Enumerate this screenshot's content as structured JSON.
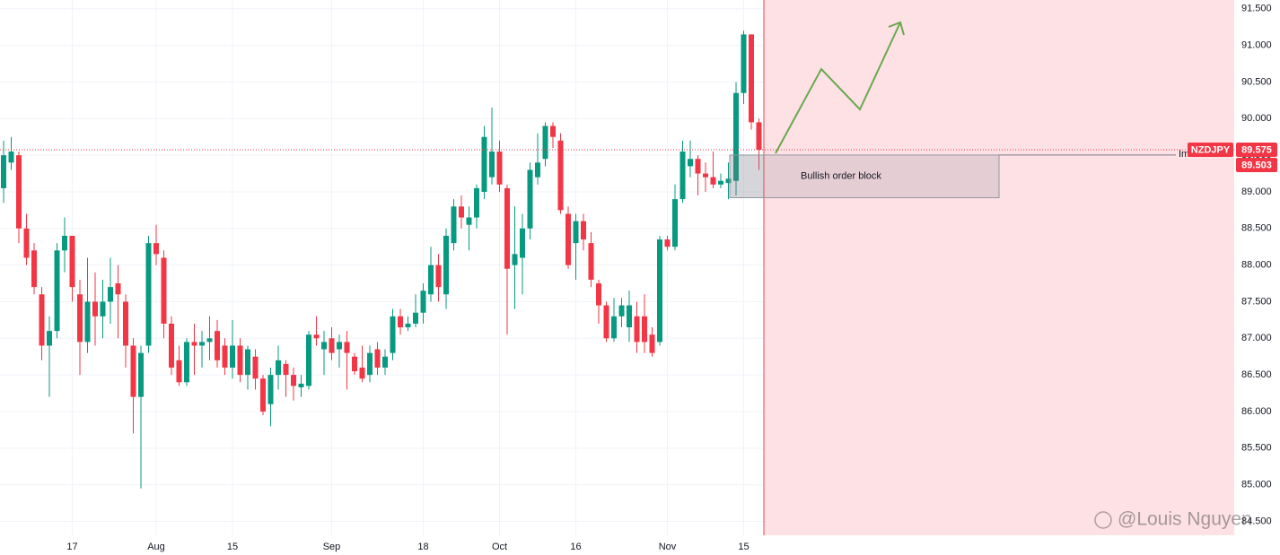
{
  "chart_data": {
    "type": "candlestick",
    "symbol": "NZDJPY",
    "up_color": "#089981",
    "down_color": "#f23645",
    "open": [
      89.05,
      89.4,
      89.5,
      88.5,
      88.2,
      87.6,
      86.9,
      87.1,
      88.2,
      88.4,
      87.6,
      86.95,
      87.5,
      87.3,
      87.5,
      87.75,
      87.5,
      86.9,
      86.2,
      86.9,
      88.3,
      88.1,
      87.2,
      86.7,
      86.4,
      86.95,
      86.9,
      86.95,
      87.1,
      86.9,
      86.6,
      86.9,
      86.5,
      86.75,
      86.45,
      86.1,
      86.5,
      86.65,
      86.5,
      86.33,
      86.35,
      87.05,
      86.85,
      87.0,
      86.85,
      86.95,
      86.75,
      86.6,
      86.5,
      86.85,
      86.6,
      86.8,
      87.3,
      87.15,
      87.2,
      87.35,
      87.6,
      88.0,
      87.6,
      88.3,
      88.8,
      88.55,
      88.65,
      89.0,
      89.2,
      89.55,
      89.05,
      88.0,
      88.1,
      88.5,
      89.2,
      89.45,
      89.9,
      89.7,
      88.7,
      88.3,
      88.6,
      88.3,
      87.75,
      87.45,
      87.0,
      87.3,
      87.15,
      87.3,
      87.3,
      87.05,
      86.95,
      88.35,
      88.25,
      88.9,
      89.35,
      89.45,
      89.25,
      89.2,
      89.1,
      89.12,
      89.15,
      90.35,
      91.15,
      89.95
    ],
    "high": [
      89.7,
      89.75,
      89.55,
      88.7,
      88.3,
      87.7,
      87.3,
      88.3,
      88.65,
      88.4,
      87.8,
      88.1,
      87.9,
      87.8,
      88.1,
      88.0,
      87.6,
      87.0,
      86.9,
      88.4,
      88.55,
      88.2,
      87.3,
      86.9,
      87.0,
      87.2,
      87.1,
      87.3,
      87.25,
      87.0,
      87.25,
      87.0,
      86.9,
      86.85,
      86.5,
      86.6,
      86.9,
      86.7,
      86.6,
      86.5,
      87.1,
      87.3,
      87.1,
      87.15,
      87.05,
      87.1,
      86.8,
      86.9,
      86.9,
      86.95,
      86.85,
      87.4,
      87.4,
      87.3,
      87.6,
      87.75,
      88.25,
      88.15,
      88.5,
      88.9,
      88.95,
      88.8,
      89.1,
      89.9,
      90.15,
      89.7,
      89.1,
      88.8,
      88.7,
      89.4,
      89.8,
      89.95,
      89.95,
      89.8,
      88.8,
      88.7,
      88.7,
      88.45,
      87.8,
      87.5,
      87.55,
      87.55,
      87.65,
      87.5,
      87.6,
      87.15,
      88.4,
      88.4,
      89.1,
      89.7,
      89.7,
      89.5,
      89.4,
      89.55,
      89.25,
      89.4,
      90.5,
      91.2,
      91.15,
      90.0
    ],
    "low": [
      88.85,
      89.3,
      88.3,
      88.0,
      87.6,
      86.7,
      86.2,
      87.0,
      87.9,
      87.5,
      86.5,
      86.8,
      86.9,
      87.0,
      87.2,
      87.0,
      86.6,
      85.7,
      84.95,
      86.8,
      88.0,
      87.0,
      86.5,
      86.35,
      86.35,
      86.5,
      86.6,
      86.7,
      86.6,
      86.5,
      86.45,
      86.4,
      86.3,
      86.3,
      85.95,
      85.8,
      86.3,
      86.2,
      86.15,
      86.2,
      86.3,
      86.9,
      86.5,
      86.7,
      86.6,
      86.3,
      86.5,
      86.4,
      86.4,
      86.5,
      86.5,
      86.7,
      87.05,
      87.1,
      87.15,
      87.2,
      87.5,
      87.5,
      87.4,
      88.2,
      88.5,
      88.2,
      88.5,
      88.9,
      89.1,
      89.0,
      87.05,
      87.4,
      87.6,
      88.35,
      89.1,
      89.35,
      89.6,
      88.7,
      87.95,
      87.8,
      88.2,
      87.7,
      87.2,
      86.95,
      86.95,
      87.15,
      86.95,
      86.8,
      86.8,
      86.75,
      86.9,
      88.2,
      88.2,
      88.85,
      89.2,
      88.95,
      89.0,
      89.05,
      89.05,
      88.9,
      88.95,
      90.2,
      89.85,
      89.3
    ],
    "close": [
      89.5,
      89.55,
      88.5,
      88.1,
      87.7,
      86.9,
      87.1,
      88.2,
      88.4,
      87.7,
      86.95,
      87.5,
      87.3,
      87.5,
      87.7,
      87.6,
      86.9,
      86.2,
      86.8,
      88.3,
      88.15,
      87.2,
      86.6,
      86.4,
      86.95,
      86.9,
      86.95,
      87.0,
      86.7,
      86.6,
      86.9,
      86.5,
      86.85,
      86.45,
      86.0,
      86.5,
      86.7,
      86.5,
      86.35,
      86.38,
      87.05,
      87.0,
      86.95,
      86.8,
      86.95,
      86.8,
      86.55,
      86.45,
      86.8,
      86.6,
      86.75,
      87.3,
      87.15,
      87.2,
      87.35,
      87.65,
      88.0,
      87.7,
      88.4,
      88.8,
      88.65,
      88.65,
      89.05,
      89.75,
      89.55,
      89.1,
      87.95,
      88.15,
      88.5,
      89.3,
      89.4,
      89.9,
      89.75,
      88.75,
      88.0,
      88.6,
      88.35,
      87.8,
      87.45,
      87.0,
      87.3,
      87.45,
      87.45,
      86.95,
      86.95,
      86.8,
      88.35,
      88.25,
      88.9,
      89.55,
      89.45,
      89.25,
      89.2,
      89.1,
      89.15,
      89.18,
      90.35,
      91.15,
      89.95,
      89.575
    ],
    "ylim": [
      84.31,
      91.62
    ],
    "yticks": [
      {
        "value": 84.5,
        "label": "84.500"
      },
      {
        "value": 85,
        "label": "85.000"
      },
      {
        "value": 85.5,
        "label": "85.500"
      },
      {
        "value": 86,
        "label": "86.000"
      },
      {
        "value": 86.5,
        "label": "86.500"
      },
      {
        "value": 87,
        "label": "87.000"
      },
      {
        "value": 87.5,
        "label": "87.500"
      },
      {
        "value": 88,
        "label": "88.000"
      },
      {
        "value": 88.5,
        "label": "88.500"
      },
      {
        "value": 89,
        "label": "89.000"
      },
      {
        "value": 89.5,
        "label": "89.500"
      },
      {
        "value": 90,
        "label": "90.000"
      },
      {
        "value": 90.5,
        "label": "90.500"
      },
      {
        "value": 91,
        "label": "91.000"
      },
      {
        "value": 91.5,
        "label": "91.500"
      }
    ],
    "xticks": [
      {
        "value": 9,
        "label": "17"
      },
      {
        "value": 20,
        "label": "Aug"
      },
      {
        "value": 30,
        "label": "15"
      },
      {
        "value": 43,
        "label": "Sep"
      },
      {
        "value": 55,
        "label": "18"
      },
      {
        "value": 65,
        "label": "Oct"
      },
      {
        "value": 75,
        "label": "16"
      },
      {
        "value": 87,
        "label": "Nov"
      },
      {
        "value": 97,
        "label": "15"
      }
    ],
    "grid": true,
    "order_block": {
      "label": "Bullish order block",
      "top": 89.503,
      "bottom": 88.92,
      "line_label": "Imbalance"
    },
    "watermark": "@Louis Nguyen"
  }
}
